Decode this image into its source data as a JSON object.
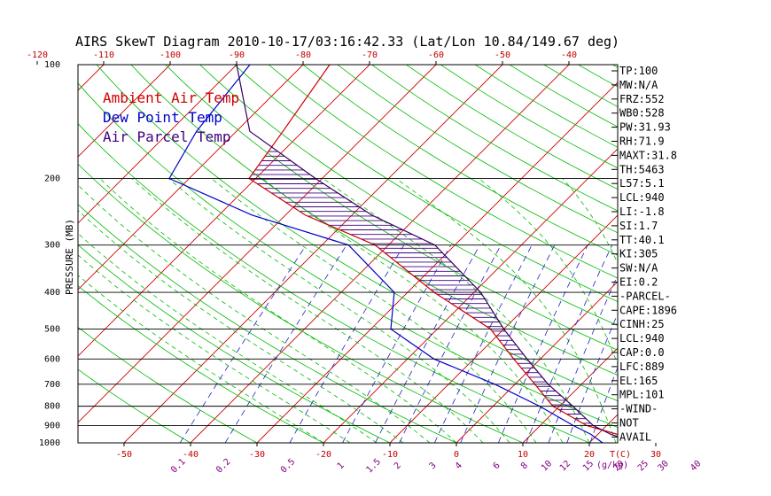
{
  "chart_data": {
    "type": "line",
    "title": "AIRS SkewT Diagram 2010-10-17/03:16:42.33 (Lat/Lon 10.84/149.67 deg)",
    "ylabel": "PRESSURE (MB)",
    "xlabel_unit": "T(C)",
    "mixing_unit": "(g/kg)",
    "top_ticks": [
      "-120",
      "-110",
      "-100",
      "-90",
      "-80",
      "-70",
      "-60",
      "-50",
      "-40"
    ],
    "bottom_ticks": [
      "-50",
      "-40",
      "-30",
      "-20",
      "-10",
      "0",
      "10",
      "20",
      "30"
    ],
    "pressure_levels": [
      "100",
      "200",
      "300",
      "400",
      "500",
      "600",
      "700",
      "800",
      "900",
      "1000"
    ],
    "mixing_ratio_labels": [
      "0.1",
      "0.2",
      "0.5",
      "1",
      "1.5",
      "2",
      "3",
      "4",
      "6",
      "8",
      "10",
      "12",
      "15",
      "20",
      "25",
      "30",
      "40"
    ],
    "legend": [
      "Ambient Air Temp",
      "Dew Point Temp",
      "Air Parcel Temp"
    ],
    "legend_colors": [
      "#d00000",
      "#0000cc",
      "#400080"
    ],
    "series": [
      {
        "name": "Ambient Air Temp",
        "color": "#cc0000",
        "points": [
          [
            100,
            -76
          ],
          [
            150,
            -73
          ],
          [
            200,
            -71
          ],
          [
            250,
            -57
          ],
          [
            300,
            -42
          ],
          [
            400,
            -26
          ],
          [
            500,
            -12
          ],
          [
            600,
            -4
          ],
          [
            700,
            3
          ],
          [
            800,
            9
          ],
          [
            900,
            17
          ],
          [
            925,
            20
          ],
          [
            950,
            23
          ],
          [
            1000,
            27
          ]
        ]
      },
      {
        "name": "Dew Point Temp",
        "color": "#0000cc",
        "points": [
          [
            100,
            -88
          ],
          [
            150,
            -86
          ],
          [
            200,
            -83
          ],
          [
            250,
            -65
          ],
          [
            300,
            -46
          ],
          [
            400,
            -32
          ],
          [
            500,
            -27
          ],
          [
            600,
            -16
          ],
          [
            700,
            -3
          ],
          [
            800,
            7
          ],
          [
            900,
            15
          ],
          [
            950,
            19
          ],
          [
            1000,
            22
          ]
        ]
      },
      {
        "name": "Air Parcel Temp",
        "color": "#300060",
        "points": [
          [
            100,
            -90
          ],
          [
            150,
            -78
          ],
          [
            200,
            -61
          ],
          [
            250,
            -47
          ],
          [
            300,
            -33
          ],
          [
            400,
            -19
          ],
          [
            500,
            -10
          ],
          [
            600,
            -2
          ],
          [
            700,
            5
          ],
          [
            800,
            12
          ],
          [
            900,
            18
          ],
          [
            950,
            22
          ],
          [
            1000,
            27
          ]
        ]
      }
    ]
  },
  "indices": [
    "TP:100",
    "MW:N/A",
    "FRZ:552",
    "WB0:528",
    "PW:31.93",
    "RH:71.9",
    "MAXT:31.8",
    "TH:5463",
    "L57:5.1",
    "LCL:940",
    "LI:-1.8",
    "SI:1.7",
    "TT:40.1",
    "KI:305",
    "SW:N/A",
    "EI:0.2",
    "-PARCEL-",
    "CAPE:1896",
    "CINH:25",
    "LCL:940",
    "CAP:0.0",
    "LFC:889",
    "EL:165",
    "MPL:101",
    "-WIND-",
    "NOT",
    "AVAIL"
  ],
  "colors": {
    "isotherm": "#00bb00",
    "dry_adiabat": "#00bb00",
    "moist_adiabat": "#00bb00",
    "mixing_ratio": "#2020c0",
    "isotherm_red": "#cc0000",
    "hatch": "#400080"
  }
}
